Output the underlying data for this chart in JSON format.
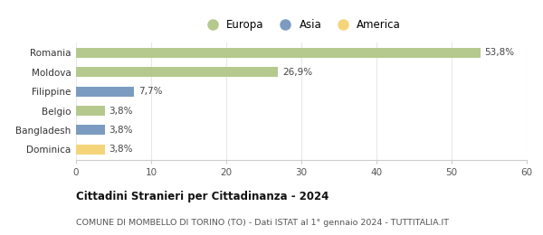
{
  "categories": [
    "Romania",
    "Moldova",
    "Filippine",
    "Belgio",
    "Bangladesh",
    "Dominica"
  ],
  "values": [
    53.8,
    26.9,
    7.7,
    3.8,
    3.8,
    3.8
  ],
  "labels": [
    "53,8%",
    "26,9%",
    "7,7%",
    "3,8%",
    "3,8%",
    "3,8%"
  ],
  "colors": [
    "#b5c98e",
    "#b5c98e",
    "#7b9cc0",
    "#b5c98e",
    "#7b9cc0",
    "#f5d57a"
  ],
  "legend": [
    {
      "label": "Europa",
      "color": "#b5c98e"
    },
    {
      "label": "Asia",
      "color": "#7b9cc0"
    },
    {
      "label": "America",
      "color": "#f5d57a"
    }
  ],
  "xlim": [
    0,
    60
  ],
  "xticks": [
    0,
    10,
    20,
    30,
    40,
    50,
    60
  ],
  "title": "Cittadini Stranieri per Cittadinanza - 2024",
  "subtitle": "COMUNE DI MOMBELLO DI TORINO (TO) - Dati ISTAT al 1° gennaio 2024 - TUTTITALIA.IT",
  "title_fontsize": 8.5,
  "subtitle_fontsize": 6.8,
  "label_fontsize": 7.5,
  "tick_fontsize": 7.5,
  "legend_fontsize": 8.5,
  "bar_height": 0.52,
  "background_color": "#ffffff",
  "grid_color": "#e8e8e8"
}
